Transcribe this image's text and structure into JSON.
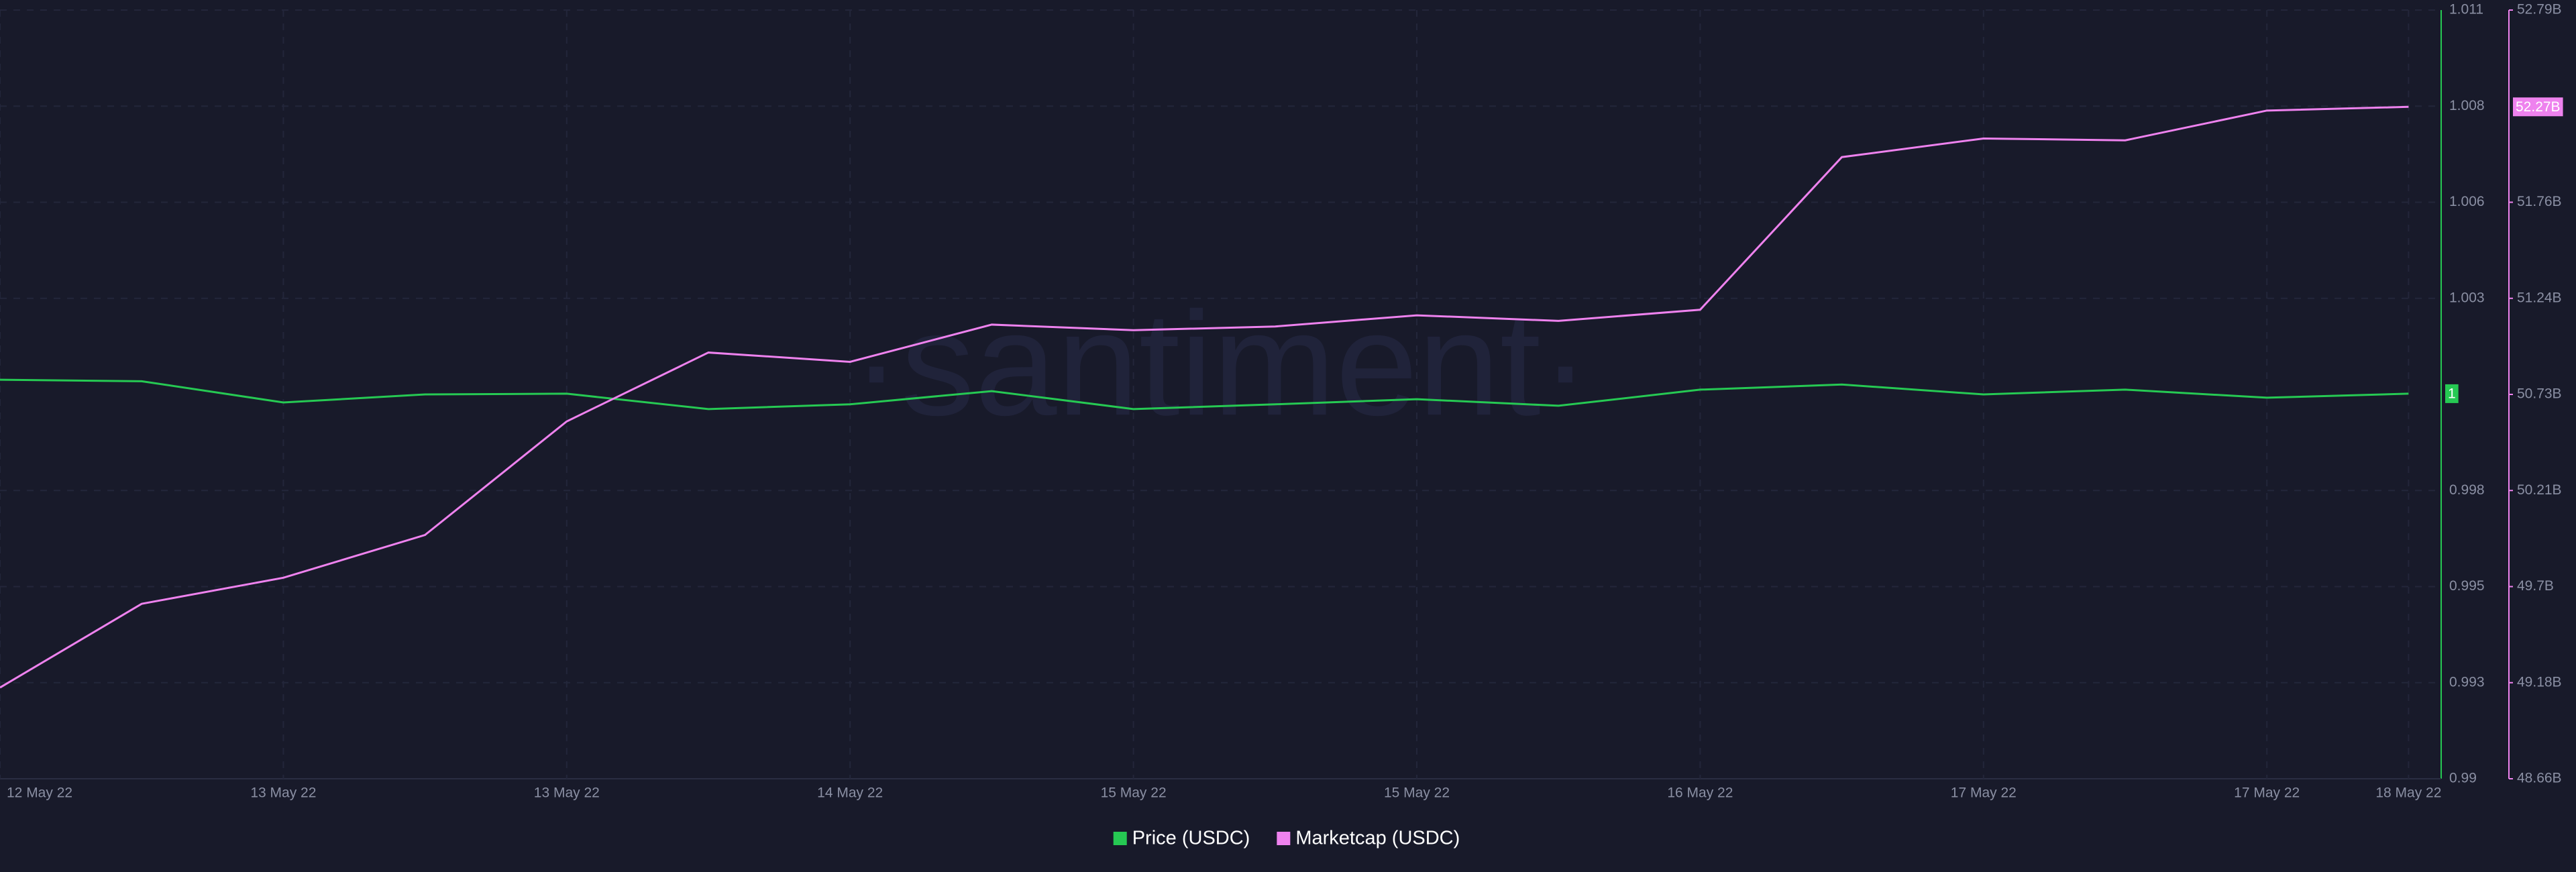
{
  "chart_data": {
    "type": "line",
    "watermark": "·santiment·",
    "categories": [
      "12 May 22",
      null,
      "13 May 22",
      null,
      "13 May 22",
      null,
      "14 May 22",
      null,
      "15 May 22",
      null,
      "15 May 22",
      null,
      "16 May 22",
      null,
      "17 May 22",
      null,
      "17 May 22",
      "18 May 22"
    ],
    "series": [
      {
        "name": "Price (USDC)",
        "color": "#26c953",
        "values": [
          1.0009,
          1.00086,
          1.00028,
          1.0005,
          1.00052,
          1.0001,
          1.00023,
          1.00059,
          1.0001,
          1.00023,
          1.00037,
          1.00019,
          1.00063,
          1.00077,
          1.0005,
          1.00063,
          1.00041,
          1.00052
        ],
        "value_labels": [
          null,
          null,
          null,
          null,
          null,
          null,
          null,
          null,
          null,
          null,
          null,
          null,
          null,
          null,
          null,
          null,
          null,
          "1"
        ]
      },
      {
        "name": "Marketcap (USDC)",
        "color": "#ee82ee",
        "axis": "y2",
        "values": [
          49.15,
          49.6,
          49.74,
          49.97,
          50.58,
          50.95,
          50.9,
          51.1,
          51.07,
          51.09,
          51.15,
          51.12,
          51.18,
          52.0,
          52.1,
          52.09,
          52.25,
          52.27
        ],
        "value_labels": [
          null,
          null,
          null,
          null,
          null,
          null,
          null,
          null,
          null,
          null,
          null,
          null,
          null,
          null,
          null,
          null,
          null,
          "52.27B"
        ]
      }
    ],
    "ylim": [
      0.99,
      1.011
    ],
    "yticks": [
      0.99,
      {
        "value": 0.992625,
        "label": "0.993"
      },
      {
        "value": 0.99525,
        "label": "0.995"
      },
      {
        "value": 0.997875,
        "label": "0.998"
      },
      {
        "value": 1.003125,
        "label": "1.003"
      },
      {
        "value": 1.00575,
        "label": "1.006"
      },
      {
        "value": 1.008375,
        "label": "1.008"
      },
      1.011
    ],
    "y2lim": [
      48.66,
      52.79
    ],
    "y2ticks": [
      {
        "value": 48.66,
        "label": "48.66B"
      },
      {
        "value": 49.17625,
        "label": "49.18B"
      },
      {
        "value": 49.6925,
        "label": "49.7B"
      },
      {
        "value": 50.20875,
        "label": "50.21B"
      },
      {
        "value": 50.725,
        "label": "50.73B"
      },
      {
        "value": 51.24125,
        "label": "51.24B"
      },
      {
        "value": 51.7575,
        "label": "51.76B"
      },
      {
        "value": 52.79,
        "label": "52.79B"
      }
    ],
    "grid": true
  }
}
